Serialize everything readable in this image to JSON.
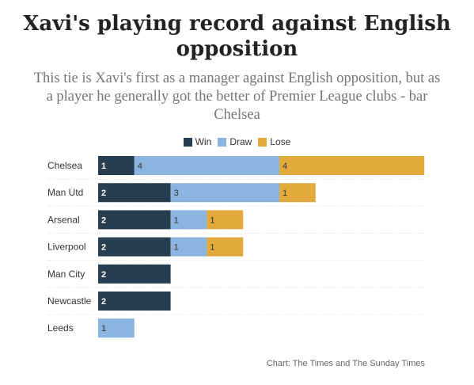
{
  "title": "Xavi's playing record against English opposition",
  "subtitle": "This tie is Xavi's first as a manager against English opposition, but as a player he generally got the better of Premier League clubs - bar Chelsea",
  "credit": "Chart: The Times and The Sunday Times",
  "chart_data": {
    "type": "bar",
    "orientation": "horizontal",
    "stacked": true,
    "categories": [
      "Chelsea",
      "Man Utd",
      "Arsenal",
      "Liverpool",
      "Man City",
      "Newcastle",
      "Leeds"
    ],
    "series": [
      {
        "name": "Win",
        "color": "#263e4f",
        "values": [
          1,
          2,
          2,
          2,
          2,
          2,
          0
        ]
      },
      {
        "name": "Draw",
        "color": "#8cb4e0",
        "values": [
          4,
          3,
          1,
          1,
          0,
          0,
          1
        ]
      },
      {
        "name": "Lose",
        "color": "#e2a93b",
        "values": [
          4,
          1,
          1,
          1,
          0,
          0,
          0
        ]
      }
    ],
    "legend_position": "top-center",
    "grid": false,
    "data_labels": true
  }
}
